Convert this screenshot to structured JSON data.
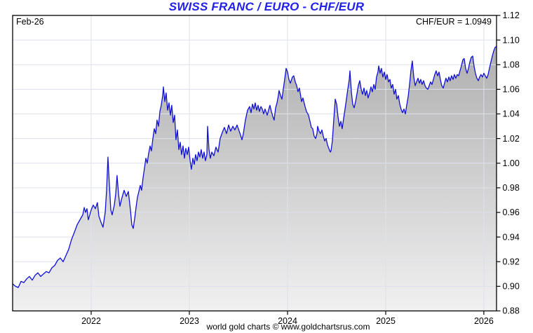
{
  "header": {
    "title": "SWISS FRANC / EURO - CHF/EUR"
  },
  "labels": {
    "period": "Feb-26",
    "quote": "CHF/EUR = 1.0949"
  },
  "footer": {
    "credit": "world gold charts © www.goldchartsrus.com"
  },
  "colors": {
    "title_blue": "#2222e6",
    "line_blue": "#1010d8",
    "grid": "#dce1ec",
    "border": "#000000",
    "fill_top": "#a8a8a8",
    "fill_bottom": "#f0f0f0",
    "background": "#ffffff"
  },
  "chart_data": {
    "type": "area",
    "title": "SWISS FRANC / EURO - CHF/EUR",
    "series_name": "CHF/EUR",
    "last_date_label": "Feb-26",
    "last_value": 1.0949,
    "xlabel": "",
    "ylabel": "",
    "xlim": [
      2021.2,
      2026.129
    ],
    "ylim": [
      0.88,
      1.12
    ],
    "y_tick_step": 0.02,
    "y_ticks": [
      0.88,
      0.9,
      0.92,
      0.94,
      0.96,
      0.98,
      1.0,
      1.02,
      1.04,
      1.06,
      1.08,
      1.1,
      1.12
    ],
    "x_ticks": [
      2022,
      2023,
      2024,
      2025,
      2026
    ],
    "x_tick_labels": [
      "2022",
      "2023",
      "2024",
      "2025",
      "2026"
    ],
    "grid": true,
    "legend_position": "none",
    "points": [
      [
        2021.2,
        0.902
      ],
      [
        2021.229,
        0.9
      ],
      [
        2021.257,
        0.899
      ],
      [
        2021.286,
        0.904
      ],
      [
        2021.314,
        0.903
      ],
      [
        2021.343,
        0.906
      ],
      [
        2021.371,
        0.908
      ],
      [
        2021.4,
        0.905
      ],
      [
        2021.429,
        0.909
      ],
      [
        2021.457,
        0.911
      ],
      [
        2021.486,
        0.908
      ],
      [
        2021.514,
        0.91
      ],
      [
        2021.543,
        0.912
      ],
      [
        2021.571,
        0.911
      ],
      [
        2021.6,
        0.915
      ],
      [
        2021.629,
        0.917
      ],
      [
        2021.657,
        0.921
      ],
      [
        2021.686,
        0.923
      ],
      [
        2021.714,
        0.92
      ],
      [
        2021.743,
        0.925
      ],
      [
        2021.771,
        0.93
      ],
      [
        2021.8,
        0.938
      ],
      [
        2021.829,
        0.944
      ],
      [
        2021.857,
        0.95
      ],
      [
        2021.886,
        0.954
      ],
      [
        2021.914,
        0.958
      ],
      [
        2021.929,
        0.964
      ],
      [
        2021.943,
        0.96
      ],
      [
        2021.957,
        0.963
      ],
      [
        2021.971,
        0.954
      ],
      [
        2021.986,
        0.958
      ],
      [
        2022.0,
        0.962
      ],
      [
        2022.021,
        0.966
      ],
      [
        2022.043,
        0.963
      ],
      [
        2022.064,
        0.968
      ],
      [
        2022.079,
        0.957
      ],
      [
        2022.1,
        0.952
      ],
      [
        2022.121,
        0.948
      ],
      [
        2022.143,
        0.96
      ],
      [
        2022.157,
        0.978
      ],
      [
        2022.171,
        1.005
      ],
      [
        2022.186,
        0.982
      ],
      [
        2022.2,
        0.962
      ],
      [
        2022.214,
        0.958
      ],
      [
        2022.236,
        0.966
      ],
      [
        2022.25,
        0.975
      ],
      [
        2022.264,
        0.99
      ],
      [
        2022.279,
        0.975
      ],
      [
        2022.293,
        0.965
      ],
      [
        2022.314,
        0.972
      ],
      [
        2022.336,
        0.978
      ],
      [
        2022.357,
        0.973
      ],
      [
        2022.379,
        0.977
      ],
      [
        2022.4,
        0.962
      ],
      [
        2022.414,
        0.95
      ],
      [
        2022.429,
        0.947
      ],
      [
        2022.443,
        0.955
      ],
      [
        2022.457,
        0.964
      ],
      [
        2022.471,
        0.972
      ],
      [
        2022.486,
        0.977
      ],
      [
        2022.5,
        0.982
      ],
      [
        2022.514,
        0.978
      ],
      [
        2022.529,
        0.988
      ],
      [
        2022.543,
        0.996
      ],
      [
        2022.557,
        1.004
      ],
      [
        2022.571,
        1.0
      ],
      [
        2022.586,
        1.008
      ],
      [
        2022.6,
        1.014
      ],
      [
        2022.614,
        1.01
      ],
      [
        2022.629,
        1.02
      ],
      [
        2022.643,
        1.028
      ],
      [
        2022.657,
        1.024
      ],
      [
        2022.671,
        1.035
      ],
      [
        2022.686,
        1.03
      ],
      [
        2022.7,
        1.042
      ],
      [
        2022.714,
        1.047
      ],
      [
        2022.729,
        1.055
      ],
      [
        2022.736,
        1.062
      ],
      [
        2022.75,
        1.05
      ],
      [
        2022.764,
        1.057
      ],
      [
        2022.779,
        1.043
      ],
      [
        2022.793,
        1.049
      ],
      [
        2022.807,
        1.039
      ],
      [
        2022.821,
        1.047
      ],
      [
        2022.836,
        1.033
      ],
      [
        2022.85,
        1.039
      ],
      [
        2022.864,
        1.019
      ],
      [
        2022.879,
        1.027
      ],
      [
        2022.893,
        1.011
      ],
      [
        2022.907,
        1.017
      ],
      [
        2022.921,
        1.007
      ],
      [
        2022.936,
        1.014
      ],
      [
        2022.95,
        1.004
      ],
      [
        2022.964,
        1.012
      ],
      [
        2022.979,
        1.007
      ],
      [
        2022.993,
        1.013
      ],
      [
        2023.007,
        1.002
      ],
      [
        2023.021,
        0.995
      ],
      [
        2023.036,
        1.004
      ],
      [
        2023.05,
        0.999
      ],
      [
        2023.064,
        1.007
      ],
      [
        2023.079,
        1.002
      ],
      [
        2023.093,
        1.009
      ],
      [
        2023.107,
        1.005
      ],
      [
        2023.121,
        1.011
      ],
      [
        2023.136,
        1.004
      ],
      [
        2023.15,
        1.009
      ],
      [
        2023.164,
        1.002
      ],
      [
        2023.179,
        1.007
      ],
      [
        2023.186,
        1.03
      ],
      [
        2023.2,
        1.011
      ],
      [
        2023.214,
        1.004
      ],
      [
        2023.229,
        1.009
      ],
      [
        2023.25,
        1.006
      ],
      [
        2023.271,
        1.013
      ],
      [
        2023.293,
        1.009
      ],
      [
        2023.314,
        1.02
      ],
      [
        2023.336,
        1.025
      ],
      [
        2023.357,
        1.029
      ],
      [
        2023.379,
        1.024
      ],
      [
        2023.4,
        1.031
      ],
      [
        2023.421,
        1.026
      ],
      [
        2023.443,
        1.03
      ],
      [
        2023.464,
        1.027
      ],
      [
        2023.486,
        1.031
      ],
      [
        2023.507,
        1.026
      ],
      [
        2023.521,
        1.023
      ],
      [
        2023.536,
        1.019
      ],
      [
        2023.55,
        1.024
      ],
      [
        2023.571,
        1.035
      ],
      [
        2023.593,
        1.043
      ],
      [
        2023.614,
        1.046
      ],
      [
        2023.629,
        1.041
      ],
      [
        2023.643,
        1.048
      ],
      [
        2023.657,
        1.044
      ],
      [
        2023.671,
        1.049
      ],
      [
        2023.686,
        1.043
      ],
      [
        2023.7,
        1.047
      ],
      [
        2023.714,
        1.042
      ],
      [
        2023.729,
        1.046
      ],
      [
        2023.743,
        1.044
      ],
      [
        2023.757,
        1.04
      ],
      [
        2023.771,
        1.044
      ],
      [
        2023.793,
        1.039
      ],
      [
        2023.807,
        1.043
      ],
      [
        2023.821,
        1.047
      ],
      [
        2023.836,
        1.042
      ],
      [
        2023.85,
        1.038
      ],
      [
        2023.864,
        1.035
      ],
      [
        2023.879,
        1.045
      ],
      [
        2023.893,
        1.049
      ],
      [
        2023.907,
        1.055
      ],
      [
        2023.914,
        1.059
      ],
      [
        2023.929,
        1.055
      ],
      [
        2023.943,
        1.052
      ],
      [
        2023.957,
        1.06
      ],
      [
        2023.971,
        1.068
      ],
      [
        2023.986,
        1.077
      ],
      [
        2024.0,
        1.074
      ],
      [
        2024.014,
        1.068
      ],
      [
        2024.029,
        1.065
      ],
      [
        2024.05,
        1.07
      ],
      [
        2024.064,
        1.071
      ],
      [
        2024.079,
        1.066
      ],
      [
        2024.093,
        1.063
      ],
      [
        2024.107,
        1.058
      ],
      [
        2024.121,
        1.061
      ],
      [
        2024.143,
        1.05
      ],
      [
        2024.157,
        1.053
      ],
      [
        2024.179,
        1.046
      ],
      [
        2024.193,
        1.042
      ],
      [
        2024.214,
        1.039
      ],
      [
        2024.229,
        1.034
      ],
      [
        2024.243,
        1.029
      ],
      [
        2024.257,
        1.028
      ],
      [
        2024.271,
        1.022
      ],
      [
        2024.286,
        1.02
      ],
      [
        2024.3,
        1.024
      ],
      [
        2024.307,
        1.03
      ],
      [
        2024.321,
        1.026
      ],
      [
        2024.336,
        1.024
      ],
      [
        2024.35,
        1.027
      ],
      [
        2024.364,
        1.022
      ],
      [
        2024.379,
        1.018
      ],
      [
        2024.393,
        1.02
      ],
      [
        2024.407,
        1.015
      ],
      [
        2024.421,
        1.012
      ],
      [
        2024.436,
        1.009
      ],
      [
        2024.443,
        1.01
      ],
      [
        2024.457,
        1.018
      ],
      [
        2024.471,
        1.035
      ],
      [
        2024.486,
        1.052
      ],
      [
        2024.5,
        1.048
      ],
      [
        2024.514,
        1.038
      ],
      [
        2024.529,
        1.03
      ],
      [
        2024.543,
        1.034
      ],
      [
        2024.557,
        1.028
      ],
      [
        2024.571,
        1.036
      ],
      [
        2024.586,
        1.044
      ],
      [
        2024.6,
        1.052
      ],
      [
        2024.614,
        1.06
      ],
      [
        2024.629,
        1.068
      ],
      [
        2024.636,
        1.075
      ],
      [
        2024.65,
        1.058
      ],
      [
        2024.664,
        1.048
      ],
      [
        2024.679,
        1.045
      ],
      [
        2024.693,
        1.05
      ],
      [
        2024.707,
        1.056
      ],
      [
        2024.721,
        1.063
      ],
      [
        2024.736,
        1.067
      ],
      [
        2024.75,
        1.06
      ],
      [
        2024.764,
        1.056
      ],
      [
        2024.779,
        1.061
      ],
      [
        2024.793,
        1.055
      ],
      [
        2024.807,
        1.059
      ],
      [
        2024.821,
        1.053
      ],
      [
        2024.836,
        1.057
      ],
      [
        2024.85,
        1.062
      ],
      [
        2024.864,
        1.058
      ],
      [
        2024.879,
        1.064
      ],
      [
        2024.893,
        1.06
      ],
      [
        2024.907,
        1.07
      ],
      [
        2024.921,
        1.074
      ],
      [
        2024.929,
        1.079
      ],
      [
        2024.943,
        1.073
      ],
      [
        2024.957,
        1.077
      ],
      [
        2024.971,
        1.07
      ],
      [
        2024.986,
        1.074
      ],
      [
        2025.0,
        1.068
      ],
      [
        2025.014,
        1.072
      ],
      [
        2025.029,
        1.066
      ],
      [
        2025.043,
        1.068
      ],
      [
        2025.057,
        1.061
      ],
      [
        2025.071,
        1.064
      ],
      [
        2025.086,
        1.056
      ],
      [
        2025.1,
        1.06
      ],
      [
        2025.114,
        1.052
      ],
      [
        2025.129,
        1.055
      ],
      [
        2025.143,
        1.048
      ],
      [
        2025.157,
        1.044
      ],
      [
        2025.171,
        1.041
      ],
      [
        2025.186,
        1.044
      ],
      [
        2025.2,
        1.04
      ],
      [
        2025.214,
        1.047
      ],
      [
        2025.229,
        1.054
      ],
      [
        2025.243,
        1.064
      ],
      [
        2025.257,
        1.075
      ],
      [
        2025.271,
        1.083
      ],
      [
        2025.286,
        1.07
      ],
      [
        2025.3,
        1.063
      ],
      [
        2025.314,
        1.066
      ],
      [
        2025.329,
        1.069
      ],
      [
        2025.343,
        1.065
      ],
      [
        2025.357,
        1.068
      ],
      [
        2025.371,
        1.064
      ],
      [
        2025.386,
        1.067
      ],
      [
        2025.4,
        1.063
      ],
      [
        2025.414,
        1.061
      ],
      [
        2025.429,
        1.06
      ],
      [
        2025.443,
        1.063
      ],
      [
        2025.457,
        1.066
      ],
      [
        2025.471,
        1.064
      ],
      [
        2025.486,
        1.068
      ],
      [
        2025.5,
        1.072
      ],
      [
        2025.514,
        1.075
      ],
      [
        2025.529,
        1.071
      ],
      [
        2025.543,
        1.074
      ],
      [
        2025.557,
        1.068
      ],
      [
        2025.571,
        1.063
      ],
      [
        2025.586,
        1.061
      ],
      [
        2025.6,
        1.065
      ],
      [
        2025.614,
        1.069
      ],
      [
        2025.629,
        1.066
      ],
      [
        2025.643,
        1.07
      ],
      [
        2025.657,
        1.067
      ],
      [
        2025.671,
        1.071
      ],
      [
        2025.686,
        1.068
      ],
      [
        2025.7,
        1.072
      ],
      [
        2025.714,
        1.069
      ],
      [
        2025.729,
        1.072
      ],
      [
        2025.743,
        1.071
      ],
      [
        2025.757,
        1.075
      ],
      [
        2025.771,
        1.079
      ],
      [
        2025.786,
        1.084
      ],
      [
        2025.8,
        1.085
      ],
      [
        2025.814,
        1.077
      ],
      [
        2025.829,
        1.073
      ],
      [
        2025.843,
        1.077
      ],
      [
        2025.857,
        1.082
      ],
      [
        2025.871,
        1.086
      ],
      [
        2025.886,
        1.087
      ],
      [
        2025.9,
        1.079
      ],
      [
        2025.914,
        1.073
      ],
      [
        2025.929,
        1.069
      ],
      [
        2025.943,
        1.067
      ],
      [
        2025.957,
        1.07
      ],
      [
        2025.971,
        1.072
      ],
      [
        2025.986,
        1.07
      ],
      [
        2026.0,
        1.073
      ],
      [
        2026.014,
        1.071
      ],
      [
        2026.029,
        1.069
      ],
      [
        2026.043,
        1.072
      ],
      [
        2026.057,
        1.077
      ],
      [
        2026.071,
        1.082
      ],
      [
        2026.086,
        1.087
      ],
      [
        2026.1,
        1.091
      ],
      [
        2026.114,
        1.094
      ],
      [
        2026.129,
        1.0949
      ]
    ]
  }
}
